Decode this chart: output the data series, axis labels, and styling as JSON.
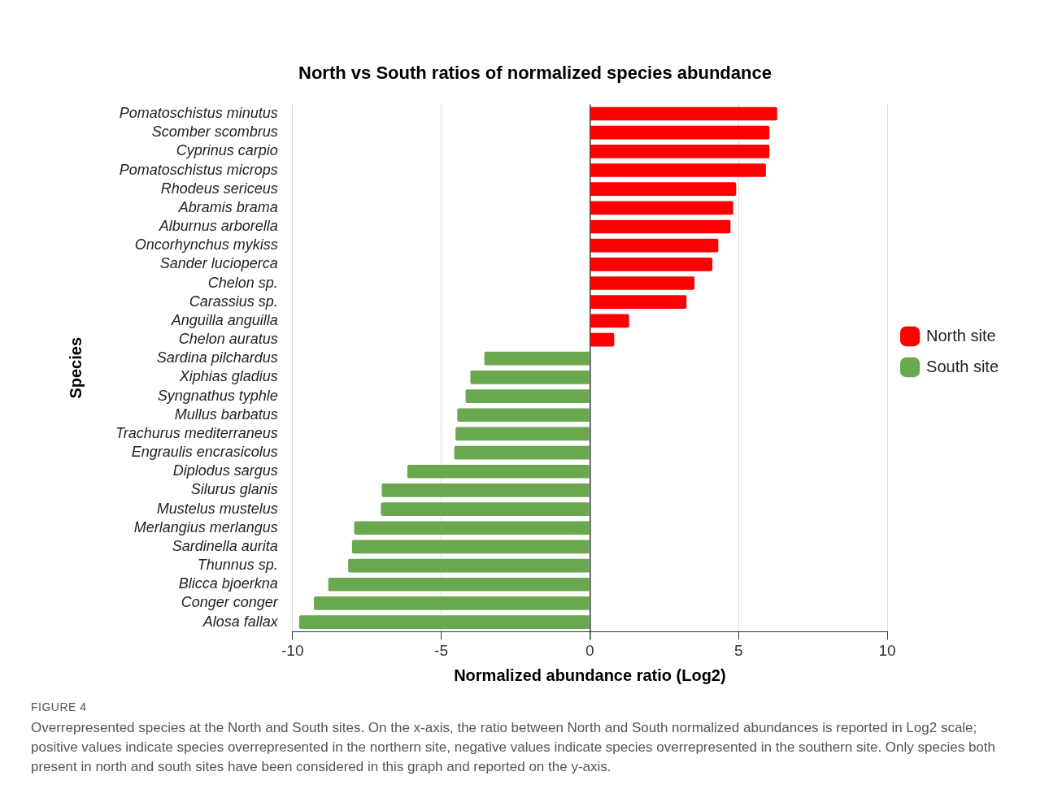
{
  "chart_data": {
    "type": "bar",
    "orientation": "horizontal",
    "title": "North vs South ratios of normalized species abundance",
    "xlabel": "Normalized abundance ratio (Log2)",
    "ylabel": "Species",
    "categories": [
      "Pomatoschistus minutus",
      "Scomber scombrus",
      "Cyprinus carpio",
      "Pomatoschistus microps",
      "Rhodeus sericeus",
      "Abramis brama",
      "Alburnus arborella",
      "Oncorhynchus mykiss",
      "Sander lucioperca",
      "Chelon sp.",
      "Carassius sp.",
      "Anguilla anguilla",
      "Chelon auratus",
      "Sardina pilchardus",
      "Xiphias gladius",
      "Syngnathus typhle",
      "Mullus barbatus",
      "Trachurus mediterraneus",
      "Engraulis encrasicolus",
      "Diplodus sargus",
      "Silurus glanis",
      "Mustelus mustelus",
      "Merlangius merlangus",
      "Sardinella aurita",
      "Thunnus sp.",
      "Blicca bjoerkna",
      "Conger conger",
      "Alosa fallax"
    ],
    "series": [
      {
        "name": "North site",
        "color": "#ff0000",
        "values": [
          6.3,
          6.04,
          6.04,
          5.92,
          4.92,
          4.82,
          4.73,
          4.32,
          4.12,
          3.52,
          3.25,
          1.32,
          0.82,
          null,
          null,
          null,
          null,
          null,
          null,
          null,
          null,
          null,
          null,
          null,
          null,
          null,
          null,
          null
        ]
      },
      {
        "name": "South site",
        "color": "#6aa84f",
        "values": [
          null,
          null,
          null,
          null,
          null,
          null,
          null,
          null,
          null,
          null,
          null,
          null,
          null,
          -3.55,
          -4.02,
          -4.18,
          -4.46,
          -4.52,
          -4.56,
          -6.14,
          -7.0,
          -7.03,
          -7.93,
          -8.0,
          -8.13,
          -8.8,
          -9.28,
          -9.78
        ]
      }
    ],
    "xlim": [
      -10,
      10
    ],
    "xticks": [
      -10,
      -5,
      0,
      5,
      10
    ],
    "grid": "x",
    "legend": "right",
    "annotations": [
      "FIGURE 4",
      "Overrepresented species at the North and South sites. On the x-axis, the ratio between North and South normalized abundances is reported in Log2 scale; positive values indicate species overrepresented in the northern site, negative values indicate species overrepresented in the southern site. Only species both present in north and south sites have been considered in this graph and reported on the y-axis."
    ]
  }
}
